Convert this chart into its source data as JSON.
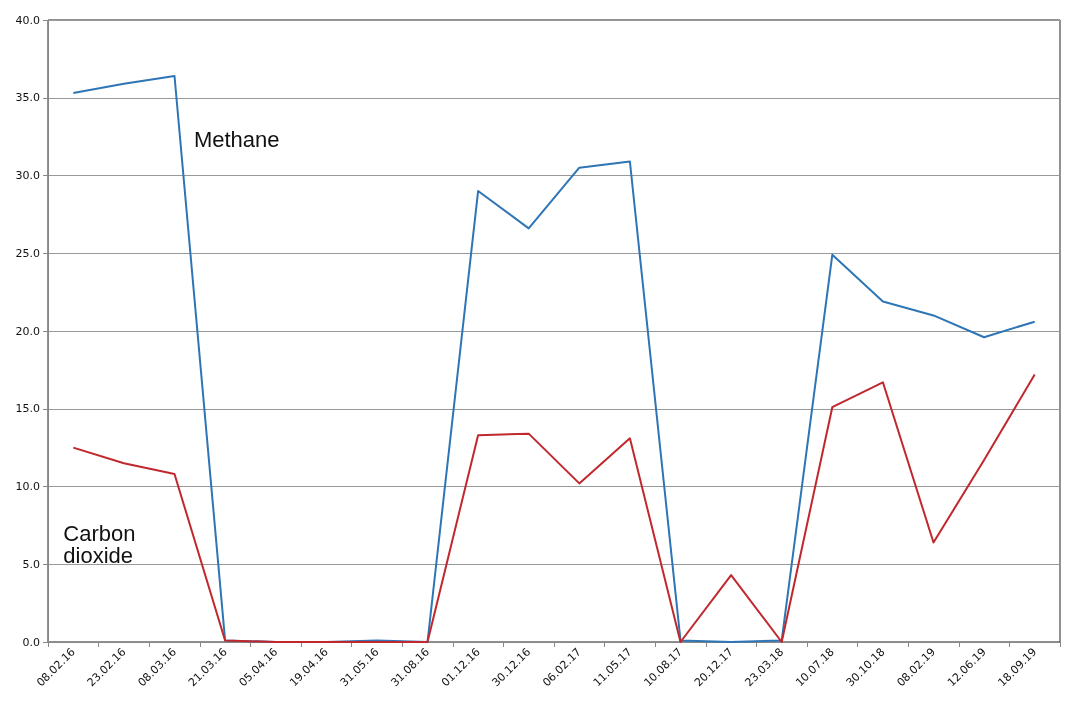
{
  "chart_data": {
    "type": "line",
    "categories": [
      "08.02.16",
      "23.02.16",
      "08.03.16",
      "21.03.16",
      "05.04.16",
      "19.04.16",
      "31.05.16",
      "31.08.16",
      "01.12.16",
      "30.12.16",
      "06.02.17",
      "11.05.17",
      "10.08.17",
      "20.12.17",
      "23.03.18",
      "10.07.18",
      "30.10.18",
      "08.02.19",
      "12.06.19",
      "18.09.19"
    ],
    "series": [
      {
        "name": "Methane",
        "color": "#2e75b6",
        "values": [
          35.3,
          35.9,
          36.4,
          0.1,
          0.0,
          0.0,
          0.1,
          0.0,
          29.0,
          26.6,
          30.5,
          30.9,
          0.1,
          0.0,
          0.1,
          24.9,
          21.9,
          21.0,
          19.6,
          20.6
        ]
      },
      {
        "name": "Carbon dioxide",
        "color": "#c0282d",
        "values": [
          12.5,
          11.5,
          10.8,
          0.1,
          0.0,
          0.0,
          0.0,
          0.0,
          13.3,
          13.4,
          10.2,
          13.1,
          0.0,
          4.3,
          0.0,
          15.1,
          16.7,
          6.4,
          11.7,
          17.2
        ]
      }
    ],
    "ylim": [
      0,
      40
    ],
    "yticks": [
      {
        "value": 0,
        "label": "0.0"
      },
      {
        "value": 5,
        "label": "5.0"
      },
      {
        "value": 10,
        "label": "10.0"
      },
      {
        "value": 15,
        "label": "15.0"
      },
      {
        "value": 20,
        "label": "20.0"
      },
      {
        "value": 25,
        "label": "25.0"
      },
      {
        "value": 30,
        "label": "30.0"
      },
      {
        "value": 35,
        "label": "35.0"
      },
      {
        "value": 40,
        "label": "40.0"
      }
    ],
    "grid": "y",
    "legend": false,
    "marker": "none",
    "line_style": "solid"
  }
}
